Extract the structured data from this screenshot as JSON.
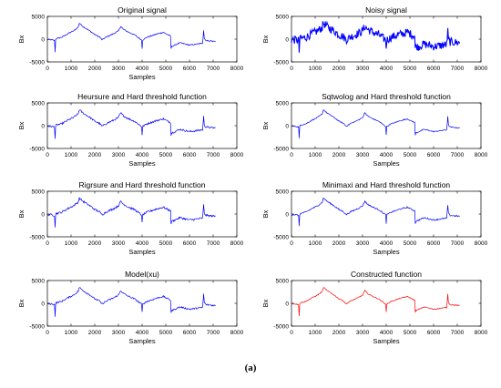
{
  "caption": "(a)",
  "chart_data": [
    {
      "type": "line",
      "title": "Original signal",
      "xlabel": "Samples",
      "ylabel": "Bx",
      "xlim": [
        0,
        8000
      ],
      "ylim": [
        -5000,
        5000
      ],
      "xticks": [
        "0",
        "1000",
        "2000",
        "3000",
        "4000",
        "5000",
        "6000",
        "7000",
        "8000"
      ],
      "yticks": [
        "-5000",
        "0",
        "5000"
      ],
      "series": [
        {
          "color": "#0000ff",
          "noise": 120,
          "values": []
        }
      ]
    },
    {
      "type": "line",
      "title": "Noisy signal",
      "xlabel": "",
      "ylabel": "Bx",
      "xlim": [
        0,
        8000
      ],
      "ylim": [
        -5000,
        5000
      ],
      "xticks": [
        "0",
        "1000",
        "2000",
        "3000",
        "4000",
        "5000",
        "6000",
        "7000",
        "8000"
      ],
      "yticks": [
        "-5000",
        "0",
        "5000"
      ],
      "series": [
        {
          "color": "#0000ff",
          "noise": 900,
          "values": []
        }
      ]
    },
    {
      "type": "line",
      "title": "Heursure and Hard threshold function",
      "xlabel": "Samples",
      "ylabel": "Bx",
      "xlim": [
        0,
        8000
      ],
      "ylim": [
        -5000,
        5000
      ],
      "xticks": [
        "0",
        "1000",
        "2000",
        "3000",
        "4000",
        "5000",
        "6000",
        "7000",
        "8000"
      ],
      "yticks": [
        "-5000",
        "0",
        "5000"
      ],
      "series": [
        {
          "color": "#0000ff",
          "noise": 200,
          "values": []
        }
      ]
    },
    {
      "type": "line",
      "title": "Sqtwolog and Hard threshold function",
      "xlabel": "Samples",
      "ylabel": "Bx",
      "xlim": [
        0,
        8000
      ],
      "ylim": [
        -5000,
        5000
      ],
      "xticks": [
        "0",
        "1000",
        "2000",
        "3000",
        "4000",
        "5000",
        "6000",
        "7000",
        "8000"
      ],
      "yticks": [
        "-5000",
        "0",
        "5000"
      ],
      "series": [
        {
          "color": "#0000ff",
          "noise": 100,
          "values": []
        }
      ]
    },
    {
      "type": "line",
      "title": "Rigrsure and Hard threshold function",
      "xlabel": "Samples",
      "ylabel": "Bx",
      "xlim": [
        0,
        8000
      ],
      "ylim": [
        -5000,
        5000
      ],
      "xticks": [
        "0",
        "1000",
        "2000",
        "3000",
        "4000",
        "5000",
        "6000",
        "7000",
        "8000"
      ],
      "yticks": [
        "-5000",
        "0",
        "5000"
      ],
      "series": [
        {
          "color": "#0000ff",
          "noise": 220,
          "values": []
        }
      ]
    },
    {
      "type": "line",
      "title": "Minimaxi and Hard threshold function",
      "xlabel": "Samples",
      "ylabel": "Bx",
      "xlim": [
        0,
        8000
      ],
      "ylim": [
        -5000,
        5000
      ],
      "xticks": [
        "0",
        "1000",
        "2000",
        "3000",
        "4000",
        "5000",
        "6000",
        "7000",
        "8000"
      ],
      "yticks": [
        "-5000",
        "0",
        "5000"
      ],
      "series": [
        {
          "color": "#0000ff",
          "noise": 150,
          "values": []
        }
      ]
    },
    {
      "type": "line",
      "title": "Model(xu)",
      "xlabel": "Samples",
      "ylabel": "Bx",
      "xlim": [
        0,
        8000
      ],
      "ylim": [
        -5000,
        5000
      ],
      "xticks": [
        "0",
        "1000",
        "2000",
        "3000",
        "4000",
        "5000",
        "6000",
        "7000",
        "8000"
      ],
      "yticks": [
        "-5000",
        "0",
        "5000"
      ],
      "series": [
        {
          "color": "#0000ff",
          "noise": 170,
          "values": []
        }
      ]
    },
    {
      "type": "line",
      "title": "Constructed function",
      "xlabel": "Samples",
      "ylabel": "Bx",
      "xlim": [
        0,
        8000
      ],
      "ylim": [
        -5000,
        5000
      ],
      "xticks": [
        "0",
        "1000",
        "2000",
        "3000",
        "4000",
        "5000",
        "6000",
        "7000",
        "8000"
      ],
      "yticks": [
        "-5000",
        "0",
        "5000"
      ],
      "series": [
        {
          "color": "#ff0000",
          "noise": 90,
          "values": []
        }
      ]
    }
  ],
  "signal_x": [
    0,
    180,
    300,
    320,
    340,
    360,
    600,
    900,
    1100,
    1300,
    1350,
    1500,
    1800,
    2000,
    2200,
    2300,
    2310,
    2320,
    2500,
    2800,
    3000,
    3100,
    3200,
    3400,
    3700,
    3980,
    4000,
    4020,
    4200,
    4600,
    4900,
    5000,
    5200,
    5220,
    5240,
    5300,
    5600,
    6000,
    6300,
    6550,
    6600,
    6620,
    6680,
    6700,
    6900,
    7100
  ],
  "signal_y": [
    -100,
    -150,
    -300,
    -3600,
    -300,
    100,
    400,
    1300,
    1800,
    2600,
    3500,
    2800,
    1800,
    1000,
    500,
    -100,
    -1400,
    -100,
    500,
    1200,
    1800,
    2800,
    2200,
    1600,
    900,
    -200,
    -2000,
    -200,
    400,
    1100,
    1500,
    1200,
    700,
    -2200,
    -1600,
    -1500,
    -800,
    -1300,
    -1100,
    -900,
    2000,
    200,
    -200,
    -300,
    -400,
    -500
  ]
}
